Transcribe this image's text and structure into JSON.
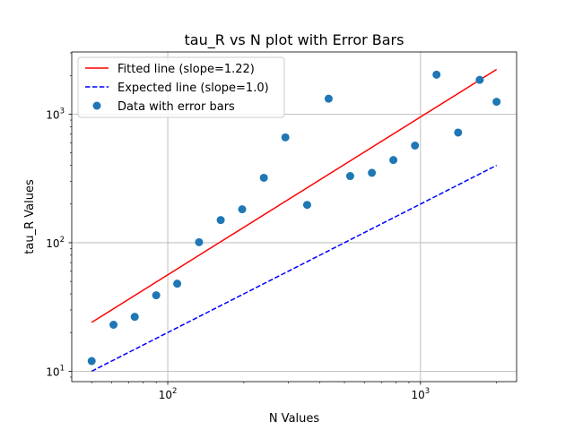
{
  "chart_data": {
    "type": "scatter",
    "title": "tau_R vs N plot with Error Bars",
    "xlabel": "N Values",
    "ylabel": "tau_R Values",
    "xscale": "log",
    "yscale": "log",
    "xlim": [
      41.7,
      2400
    ],
    "ylim": [
      8.3,
      3050
    ],
    "grid": "on (major ticks)",
    "legend_position": "top-left",
    "x_tick_labels": [
      {
        "value": 100,
        "base": "10",
        "exp": "2"
      },
      {
        "value": 1000,
        "base": "10",
        "exp": "3"
      }
    ],
    "y_tick_labels": [
      {
        "value": 10,
        "base": "10",
        "exp": "1"
      },
      {
        "value": 100,
        "base": "10",
        "exp": "2"
      },
      {
        "value": 1000,
        "base": "10",
        "exp": "3"
      }
    ],
    "series": [
      {
        "name": "Fitted line (slope=1.22)",
        "kind": "line",
        "style": "solid",
        "color": "#ff0000",
        "x": [
          50,
          2000
        ],
        "y": [
          24,
          2230
        ]
      },
      {
        "name": "Expected line (slope=1.0)",
        "kind": "line",
        "style": "dashed",
        "color": "#0000ff",
        "x": [
          50,
          2000
        ],
        "y": [
          10,
          400
        ]
      },
      {
        "name": "Data with error bars",
        "kind": "points",
        "color": "#1f77b4",
        "x": [
          50,
          61,
          74,
          90,
          109,
          133,
          162,
          197,
          240,
          292,
          356,
          433,
          527,
          642,
          781,
          951,
          1157,
          1409,
          1715,
          2000
        ],
        "y": [
          12,
          23,
          26.5,
          39,
          48,
          101,
          150,
          182,
          320,
          660,
          197,
          1320,
          330,
          350,
          440,
          570,
          2030,
          720,
          1850,
          1250
        ]
      }
    ]
  }
}
